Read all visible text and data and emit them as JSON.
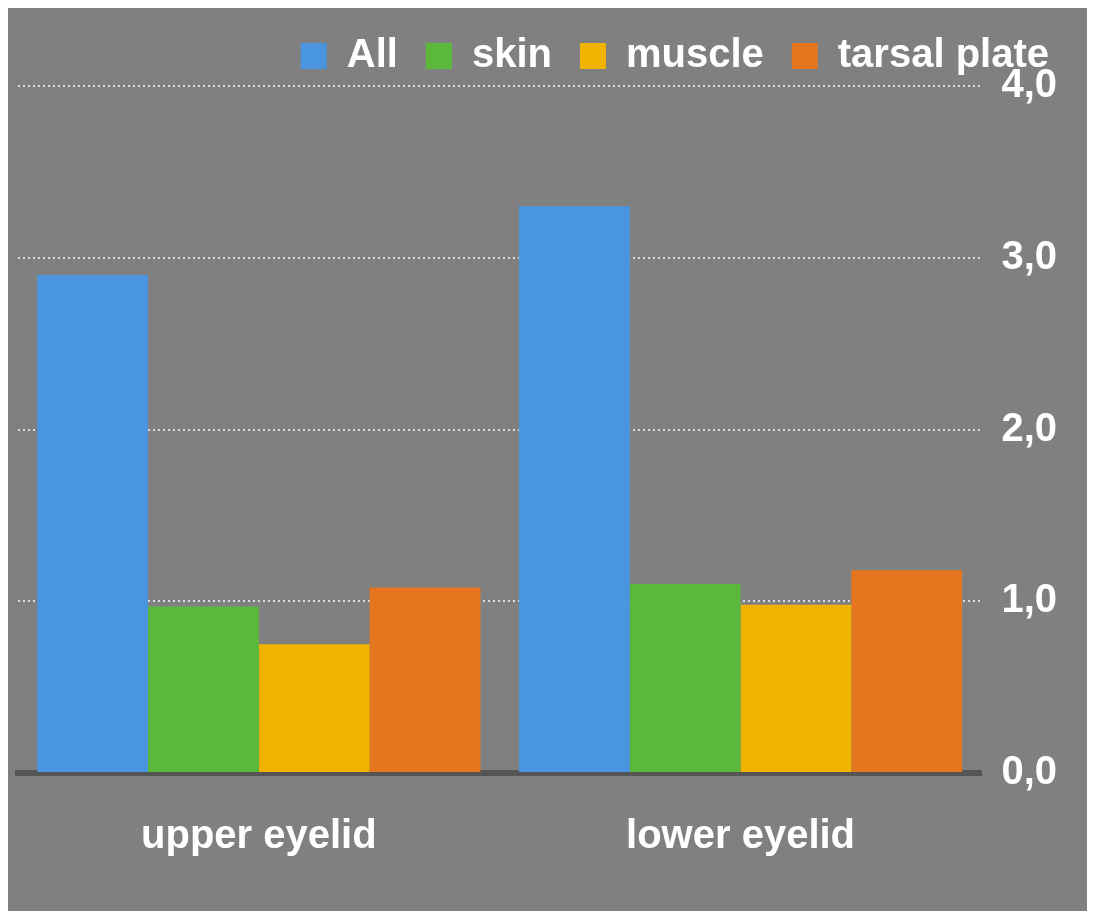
{
  "chart_data": {
    "type": "bar",
    "categories": [
      "upper eyelid",
      "lower eyelid"
    ],
    "series": [
      {
        "name": "All",
        "color": "#4a95e0",
        "values": [
          2.9,
          3.3
        ]
      },
      {
        "name": "skin",
        "color": "#5cb83a",
        "values": [
          0.97,
          1.1
        ]
      },
      {
        "name": "muscle",
        "color": "#f0b400",
        "values": [
          0.75,
          0.98
        ]
      },
      {
        "name": "tarsal plate",
        "color": "#e5761f",
        "values": [
          1.08,
          1.18
        ]
      }
    ],
    "ylim": [
      0,
      4
    ],
    "yticks": [
      {
        "value": 0,
        "label": "0,0"
      },
      {
        "value": 1,
        "label": "1,0"
      },
      {
        "value": 2,
        "label": "2,0"
      },
      {
        "value": 3,
        "label": "3,0"
      },
      {
        "value": 4,
        "label": "4,0"
      }
    ],
    "grid": "y",
    "legend": "top right"
  }
}
